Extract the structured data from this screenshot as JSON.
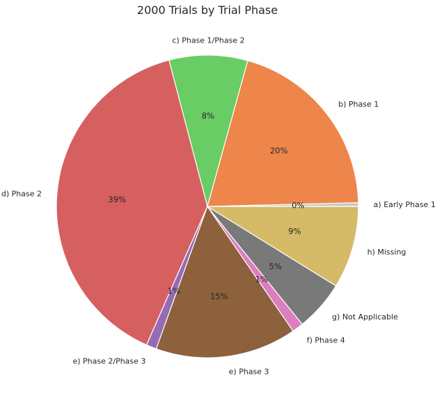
{
  "chart_data": {
    "type": "pie",
    "title": "2000 Trials by Trial Phase",
    "labels": [
      "a) Early Phase 1",
      "b) Phase 1",
      "c) Phase 1/Phase 2",
      "d) Phase 2",
      "e) Phase 2/Phase 3",
      "e) Phase 3",
      "f) Phase 4",
      "g) Not Applicable",
      "h) Missing"
    ],
    "values": [
      0.4,
      20.3,
      8.4,
      39.3,
      1.1,
      15.1,
      1.2,
      5.4,
      8.8
    ],
    "pct_labels": [
      "0%",
      "20%",
      "8%",
      "39%",
      "1%",
      "15%",
      "1%",
      "5%",
      "9%"
    ],
    "colors": [
      "#c8c8c8",
      "#ee854a",
      "#6acc64",
      "#d65f5f",
      "#956cb4",
      "#8c613c",
      "#dc7ec0",
      "#797979",
      "#d5bb67"
    ],
    "start_angle_deg": 0,
    "direction": "counterclockwise"
  }
}
